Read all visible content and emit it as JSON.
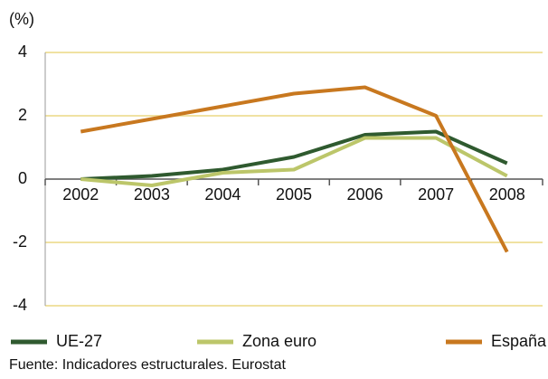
{
  "chart_data": {
    "type": "line",
    "y_label": "(%)",
    "categories": [
      "2002",
      "2003",
      "2004",
      "2005",
      "2006",
      "2007",
      "2008"
    ],
    "series": [
      {
        "name": "UE-27",
        "color": "#2f5a2f",
        "values": [
          0,
          0.1,
          0.3,
          0.7,
          1.4,
          1.5,
          0.5
        ]
      },
      {
        "name": "Zona euro",
        "color": "#bcc66a",
        "values": [
          0,
          -0.2,
          0.2,
          0.3,
          1.3,
          1.3,
          0.1
        ]
      },
      {
        "name": "España",
        "color": "#c8781f",
        "values": [
          1.5,
          1.9,
          2.3,
          2.7,
          2.9,
          2.0,
          -2.3
        ]
      }
    ],
    "ylim": [
      -4,
      4
    ],
    "yticks": [
      -4,
      -2,
      0,
      2,
      4
    ],
    "grid": true,
    "source": "Fuente: Indicadores estructurales. Eurostat"
  }
}
